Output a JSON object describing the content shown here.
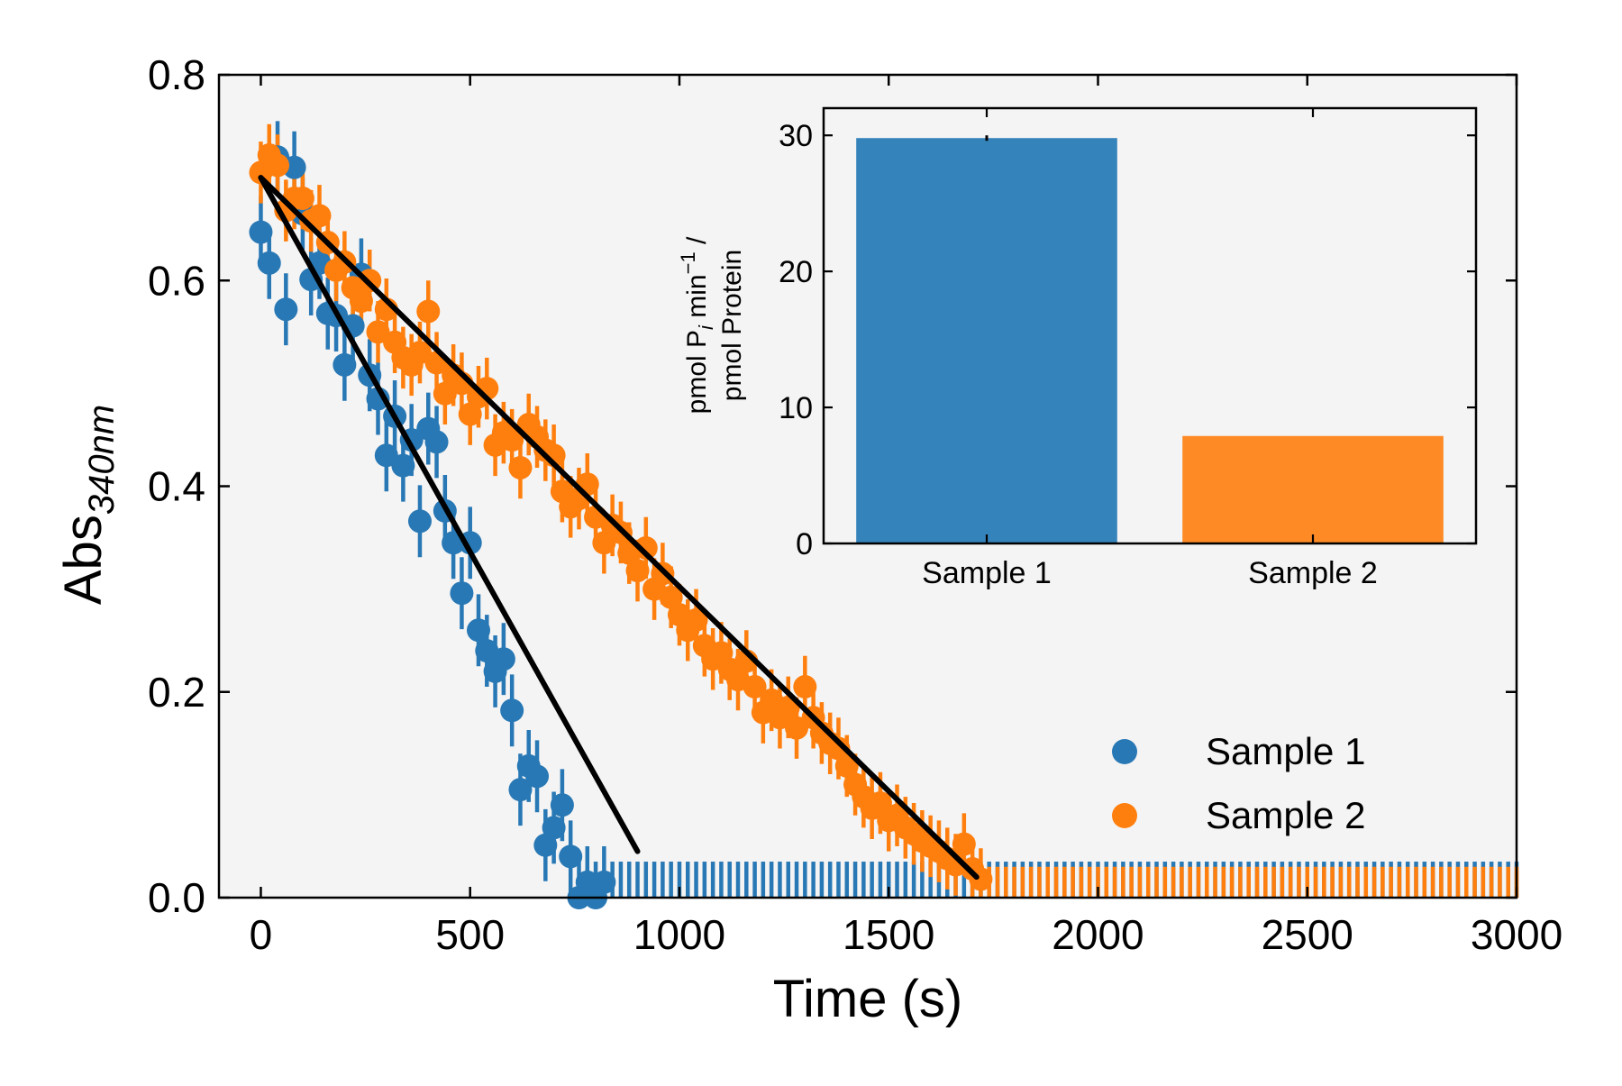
{
  "colors": {
    "sample1": "#2878b5",
    "sample2": "#ff7f0e",
    "fit": "#000000",
    "panel_bg": "#f4f4f4"
  },
  "chart_data": [
    {
      "type": "scatter",
      "xlabel": "Time (s)",
      "ylabel_main": "Abs",
      "ylabel_sub": "340nm",
      "xlim": [
        -100,
        3000
      ],
      "ylim": [
        0,
        0.8
      ],
      "xticks": [
        "0",
        "500",
        "1000",
        "1500",
        "2000",
        "2500",
        "3000"
      ],
      "yticks": [
        "0.0",
        "0.2",
        "0.4",
        "0.6",
        "0.8"
      ],
      "legend_position": "lower-right",
      "series": [
        {
          "name": "Sample 1",
          "start_time": 0,
          "interval": 20,
          "end_time": 3000,
          "error": 0.035,
          "values": [
            0.647,
            0.617,
            0.72,
            0.572,
            0.71,
            0.665,
            0.601,
            0.617,
            0.568,
            0.566,
            0.518,
            0.556,
            0.606,
            0.508,
            0.485,
            0.43,
            0.468,
            0.42,
            0.445,
            0.366,
            0.456,
            0.443,
            0.376,
            0.345,
            0.296,
            0.345,
            0.26,
            0.24,
            0.22,
            0.232,
            0.182,
            0.105,
            0.128,
            0.118,
            0.051,
            0.068,
            0.09,
            0.04,
            0.0,
            0.015,
            0.0,
            0.015
          ]
        },
        {
          "name": "Sample 2",
          "start_time": 0,
          "interval": 20,
          "end_time": 3000,
          "error": 0.03,
          "values": [
            0.705,
            0.722,
            0.712,
            0.668,
            0.68,
            0.68,
            0.658,
            0.663,
            0.637,
            0.61,
            0.618,
            0.593,
            0.58,
            0.6,
            0.55,
            0.572,
            0.54,
            0.525,
            0.518,
            0.53,
            0.57,
            0.52,
            0.49,
            0.508,
            0.5,
            0.47,
            0.487,
            0.495,
            0.44,
            0.452,
            0.445,
            0.418,
            0.46,
            0.448,
            0.435,
            0.43,
            0.395,
            0.38,
            0.388,
            0.402,
            0.37,
            0.345,
            0.362,
            0.355,
            0.335,
            0.318,
            0.34,
            0.3,
            0.315,
            0.292,
            0.275,
            0.26,
            0.27,
            0.245,
            0.232,
            0.238,
            0.222,
            0.212,
            0.23,
            0.205,
            0.18,
            0.192,
            0.175,
            0.185,
            0.165,
            0.205,
            0.175,
            0.16,
            0.15,
            0.145,
            0.128,
            0.11,
            0.098,
            0.087,
            0.092,
            0.075,
            0.08,
            0.068,
            0.062,
            0.055,
            0.05,
            0.045,
            0.038,
            0.032,
            0.052,
            0.028,
            0.018
          ]
        }
      ],
      "fits": [
        {
          "x": [
            0,
            900
          ],
          "y": [
            0.7,
            0.045
          ]
        },
        {
          "x": [
            0,
            1710
          ],
          "y": [
            0.7,
            0.02
          ]
        }
      ]
    },
    {
      "type": "bar",
      "categories": [
        "Sample 1",
        "Sample 2"
      ],
      "values": [
        29.8,
        7.9
      ],
      "errors": [
        0.2,
        0
      ],
      "ylim": [
        0,
        32
      ],
      "yticks": [
        "0",
        "10",
        "20",
        "30"
      ],
      "ylabel_line1": "pmol P",
      "ylabel_sub": "i",
      "ylabel_mid": " min",
      "ylabel_sup": "−1",
      "ylabel_end": " /",
      "ylabel_line2": "pmol Protein"
    }
  ]
}
